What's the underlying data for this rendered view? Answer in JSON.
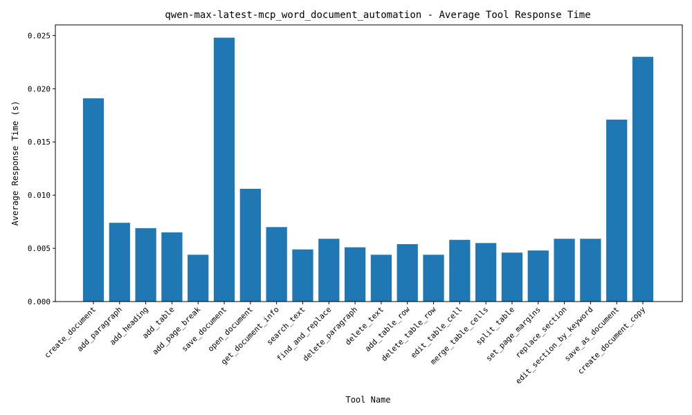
{
  "chart_data": {
    "type": "bar",
    "title": "qwen-max-latest-mcp_word_document_automation - Average Tool Response Time",
    "xlabel": "Tool Name",
    "ylabel": "Average Response Time (s)",
    "ylim": [
      0,
      0.026
    ],
    "yticks": [
      "0.000",
      "0.005",
      "0.010",
      "0.015",
      "0.020",
      "0.025"
    ],
    "grid": false,
    "bar_color": "#1f77b4",
    "categories": [
      "create_document",
      "add_paragraph",
      "add_heading",
      "add_table",
      "add_page_break",
      "save_document",
      "open_document",
      "get_document_info",
      "search_text",
      "find_and_replace",
      "delete_paragraph",
      "delete_text",
      "add_table_row",
      "delete_table_row",
      "edit_table_cell",
      "merge_table_cells",
      "split_table",
      "set_page_margins",
      "replace_section",
      "edit_section_by_keyword",
      "save_as_document",
      "create_document_copy"
    ],
    "values": [
      0.0191,
      0.0074,
      0.0069,
      0.0065,
      0.0044,
      0.0248,
      0.0106,
      0.007,
      0.0049,
      0.0059,
      0.0051,
      0.0044,
      0.0054,
      0.0044,
      0.0058,
      0.0055,
      0.0046,
      0.0048,
      0.0059,
      0.0059,
      0.0171,
      0.023
    ]
  }
}
